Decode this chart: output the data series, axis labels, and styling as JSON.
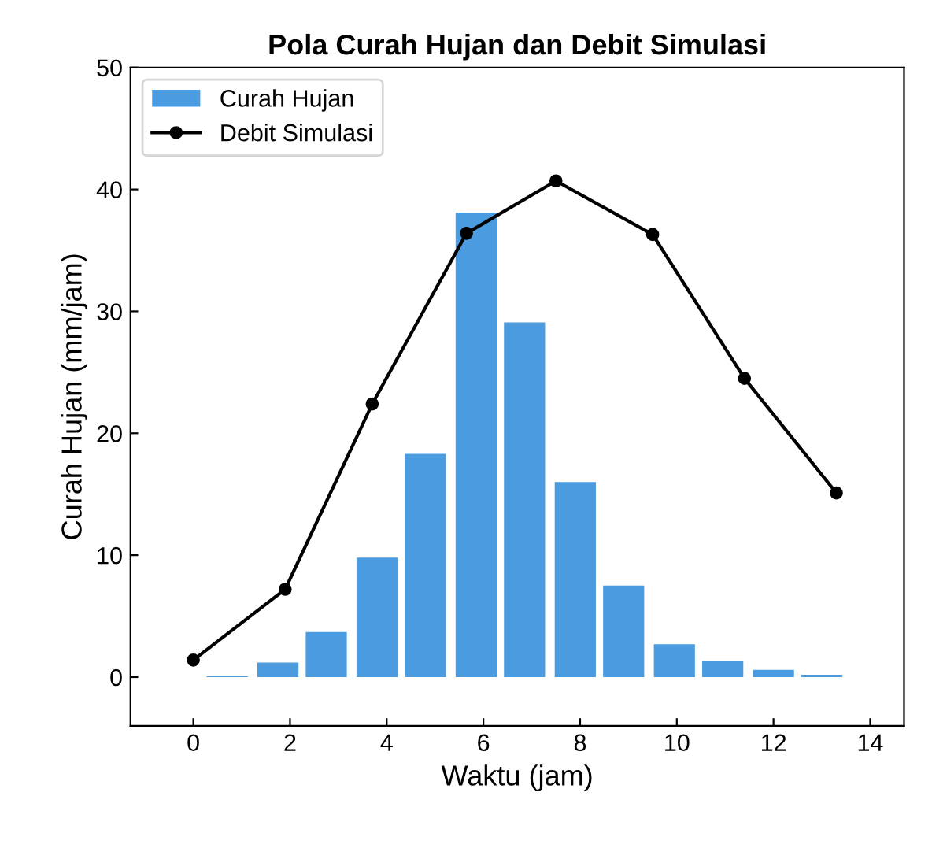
{
  "chart_data": {
    "type": "bar",
    "title": "Pola Curah Hujan dan Debit Simulasi",
    "xlabel": "Waktu (jam)",
    "ylabel": "Curah Hujan (mm/jam)",
    "x": [
      0.7,
      1.75,
      2.75,
      3.8,
      4.8,
      5.85,
      6.85,
      7.9,
      8.9,
      9.95,
      10.95,
      12.0,
      13.0
    ],
    "series": [
      {
        "name": "Curah Hujan",
        "color": "#4a9be0",
        "values": [
          0.1,
          1.2,
          3.7,
          9.8,
          18.3,
          38.1,
          29.1,
          16.0,
          7.5,
          2.7,
          1.3,
          0.6,
          0.2
        ]
      },
      {
        "name": "Debit Simulasi",
        "type": "line",
        "color": "#000000",
        "marker": "circle",
        "x": [
          0,
          1.9,
          3.7,
          5.65,
          7.5,
          9.5,
          11.4,
          13.3
        ],
        "values": [
          1.4,
          7.2,
          22.4,
          36.4,
          40.7,
          36.3,
          24.5,
          15.1
        ]
      }
    ],
    "xlim": [
      -1.3,
      14.7
    ],
    "ylim": [
      -4,
      50
    ],
    "xticks": [
      0,
      2,
      4,
      6,
      8,
      10,
      12,
      14
    ],
    "yticks": [
      0,
      10,
      20,
      30,
      40,
      50
    ],
    "grid": false,
    "legend": "top left"
  }
}
